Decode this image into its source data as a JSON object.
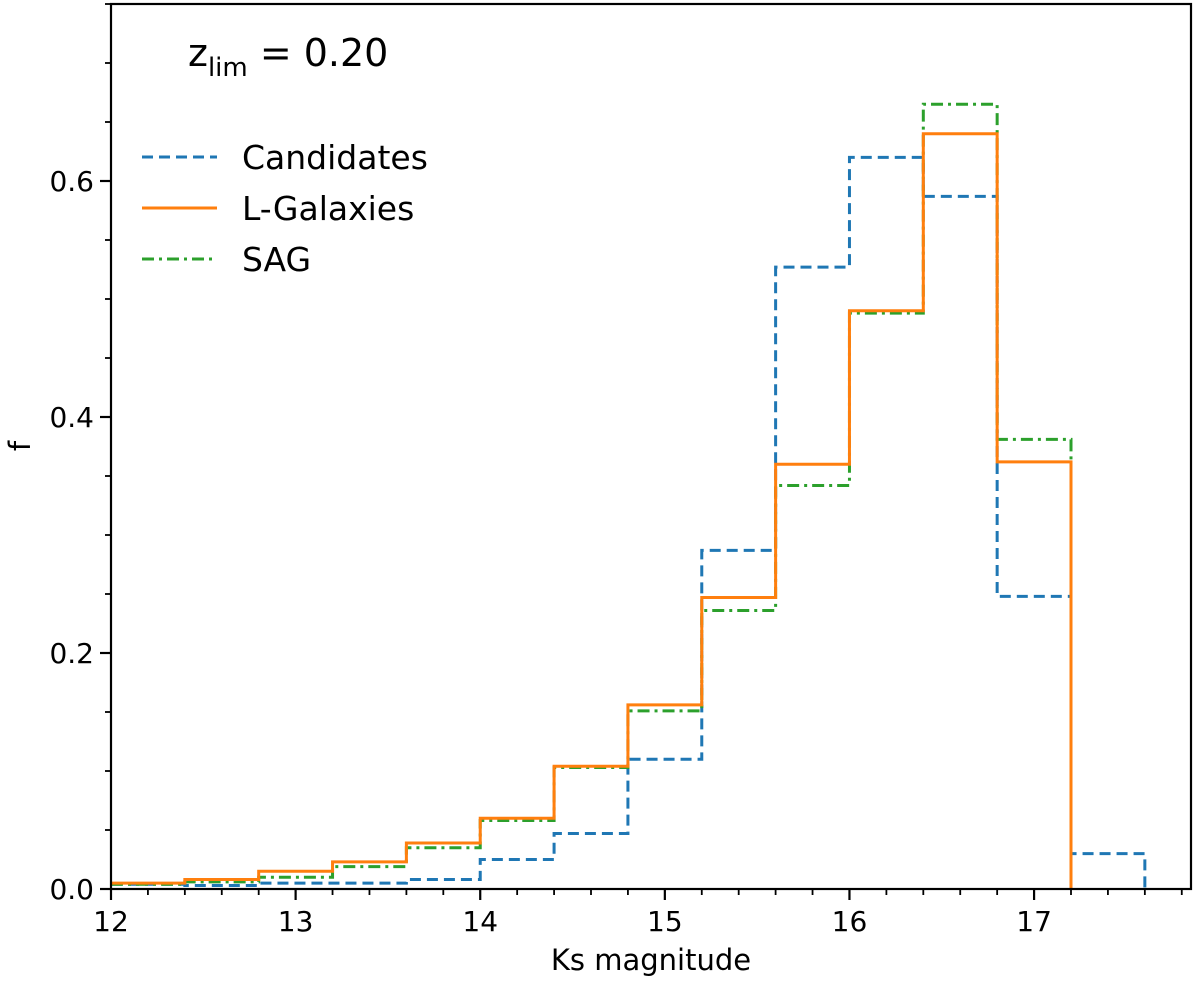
{
  "chart_data": {
    "type": "step",
    "title": "",
    "annotation": {
      "base": "z",
      "subscript": "lim",
      "rest": " = 0.20"
    },
    "xlabel": "Ks magnitude",
    "ylabel": "f",
    "xlim": [
      12.0,
      17.85
    ],
    "ylim": [
      0.0,
      0.75
    ],
    "xticks": [
      12,
      13,
      14,
      15,
      16,
      17
    ],
    "yticks": [
      0.0,
      0.2,
      0.4,
      0.6
    ],
    "xtick_labels": [
      "12",
      "13",
      "14",
      "15",
      "16",
      "17"
    ],
    "ytick_labels": [
      "0.0",
      "0.2",
      "0.4",
      "0.6"
    ],
    "x_minor_step": 0.2,
    "y_minor_step": 0.05,
    "bin_edges": [
      12.0,
      12.4,
      12.8,
      13.2,
      13.6,
      14.0,
      14.4,
      14.8,
      15.2,
      15.6,
      16.0,
      16.4,
      16.8,
      17.2,
      17.6
    ],
    "legend_position": "upper-left",
    "series": [
      {
        "name": "Candidates",
        "color": "#1f77b4",
        "style": "dashed",
        "values": [
          0.004,
          0.003,
          0.005,
          0.005,
          0.008,
          0.025,
          0.047,
          0.11,
          0.287,
          0.527,
          0.62,
          0.587,
          0.248,
          0.03
        ]
      },
      {
        "name": "L-Galaxies",
        "color": "#ff7f0e",
        "style": "solid",
        "values": [
          0.005,
          0.008,
          0.015,
          0.023,
          0.039,
          0.06,
          0.104,
          0.156,
          0.247,
          0.36,
          0.49,
          0.64,
          0.362,
          null
        ]
      },
      {
        "name": "SAG",
        "color": "#2ca02c",
        "style": "dashdot",
        "values": [
          0.004,
          0.006,
          0.01,
          0.019,
          0.035,
          0.058,
          0.103,
          0.151,
          0.236,
          0.342,
          0.488,
          0.665,
          0.381,
          null
        ]
      }
    ]
  }
}
